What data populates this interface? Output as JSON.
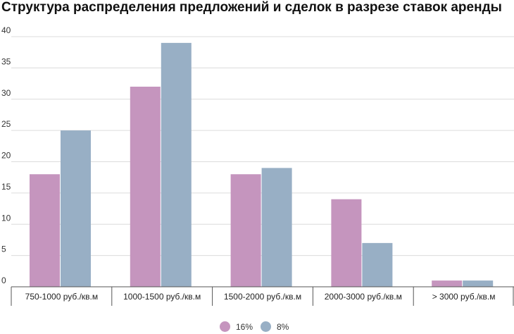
{
  "chart_data": {
    "type": "bar",
    "title": "Структура распределения предложений и сделок в разрезе ставок аренды",
    "categories": [
      "750-1000 руб./кв.м",
      "1000-1500 руб./кв.м",
      "1500-2000 руб./кв.м",
      "2000-3000 руб./кв.м",
      "> 3000 руб./кв.м"
    ],
    "series": [
      {
        "name": "16%",
        "values": [
          18,
          32,
          18,
          14,
          1
        ],
        "color": "#c595be"
      },
      {
        "name": "8%",
        "values": [
          25,
          39,
          19,
          7,
          1
        ],
        "color": "#98afc5"
      }
    ],
    "yticks": [
      0,
      5,
      10,
      15,
      20,
      25,
      30,
      35,
      40
    ],
    "ylim": [
      0,
      40
    ],
    "grid": true,
    "legend_position": "bottom-center",
    "xlabel": "",
    "ylabel": ""
  }
}
